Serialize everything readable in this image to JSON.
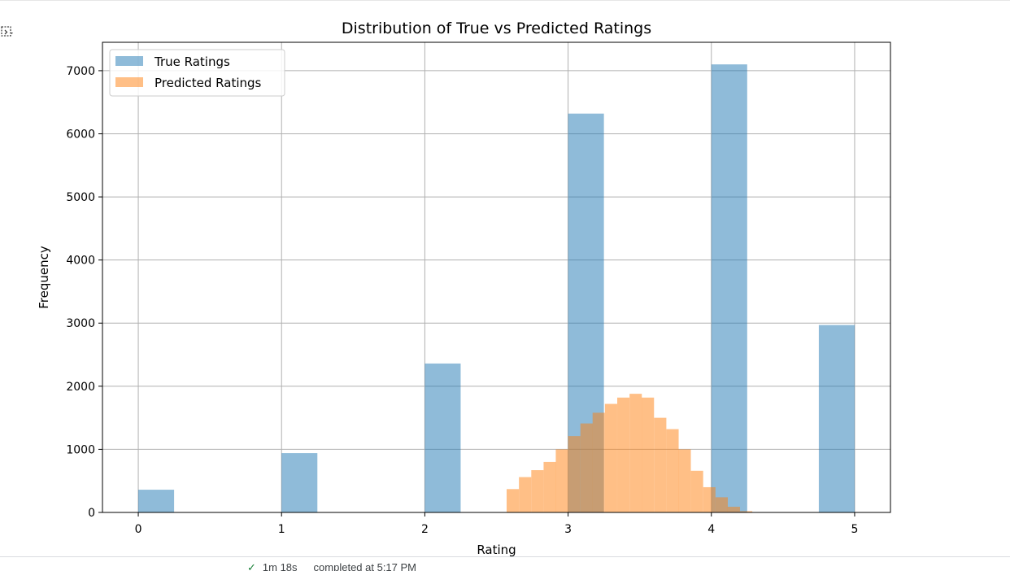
{
  "output": {
    "icon": "output-toggle-icon"
  },
  "chart_data": {
    "type": "histogram",
    "title": "Distribution of True vs Predicted Ratings",
    "xlabel": "Rating",
    "ylabel": "Frequency",
    "xlim": [
      -0.25,
      5.25
    ],
    "ylim": [
      0,
      7450
    ],
    "xticks": [
      0,
      1,
      2,
      3,
      4,
      5
    ],
    "yticks": [
      0,
      1000,
      2000,
      3000,
      4000,
      5000,
      6000,
      7000
    ],
    "grid": true,
    "legend_position": "top-left",
    "series": [
      {
        "name": "True Ratings",
        "color": "#1f77b4",
        "alpha": 0.5,
        "bin_width": 0.25,
        "bins": [
          {
            "x": 0,
            "count": 360
          },
          {
            "x": 1,
            "count": 940
          },
          {
            "x": 2,
            "count": 2360
          },
          {
            "x": 3,
            "count": 6320
          },
          {
            "x": 4,
            "count": 7100
          },
          {
            "x": 4.75,
            "count": 2970
          }
        ]
      },
      {
        "name": "Predicted Ratings",
        "color": "#ff7f0e",
        "alpha": 0.5,
        "bin_width": 0.0857,
        "bins": [
          {
            "x": 2.571,
            "count": 370
          },
          {
            "x": 2.657,
            "count": 560
          },
          {
            "x": 2.743,
            "count": 670
          },
          {
            "x": 2.829,
            "count": 800
          },
          {
            "x": 2.914,
            "count": 1000
          },
          {
            "x": 3.0,
            "count": 1210
          },
          {
            "x": 3.086,
            "count": 1410
          },
          {
            "x": 3.171,
            "count": 1580
          },
          {
            "x": 3.257,
            "count": 1720
          },
          {
            "x": 3.343,
            "count": 1820
          },
          {
            "x": 3.429,
            "count": 1880
          },
          {
            "x": 3.514,
            "count": 1820
          },
          {
            "x": 3.6,
            "count": 1500
          },
          {
            "x": 3.686,
            "count": 1320
          },
          {
            "x": 3.771,
            "count": 1000
          },
          {
            "x": 3.857,
            "count": 660
          },
          {
            "x": 3.943,
            "count": 400
          },
          {
            "x": 4.029,
            "count": 240
          },
          {
            "x": 4.114,
            "count": 90
          },
          {
            "x": 4.2,
            "count": 20
          }
        ]
      }
    ]
  },
  "status": {
    "check_icon": "check-icon",
    "duration": "1m 18s",
    "completed": "completed at 5:17 PM"
  }
}
